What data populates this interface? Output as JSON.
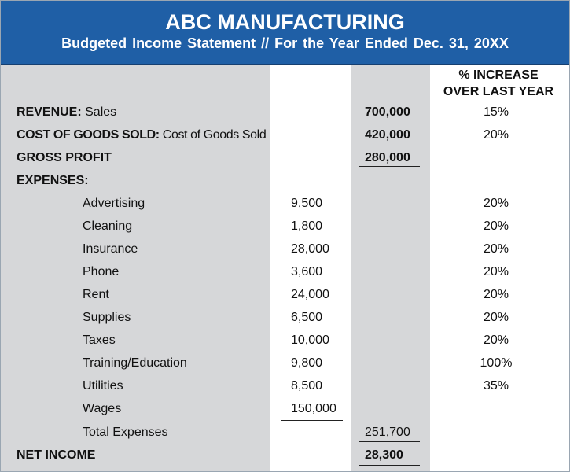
{
  "header": {
    "company": "ABC MANUFACTURING",
    "subtitle": "Budgeted  Income Statement   //   For the Year Ended Dec. 31, 20XX"
  },
  "column_headers": {
    "pct_line1": "% INCREASE",
    "pct_line2": "OVER LAST YEAR"
  },
  "revenue": {
    "label_bold": "REVENUE:",
    "label": " Sales",
    "total": "700,000",
    "pct": "15%"
  },
  "cogs": {
    "label_bold": "COST OF GOODS SOLD:",
    "label": " Cost of Goods Sold",
    "total": "420,000",
    "pct": "20%"
  },
  "gross_profit": {
    "label": "GROSS PROFIT",
    "total": "280,000"
  },
  "expenses": {
    "label": "EXPENSES:",
    "items": [
      {
        "label": "Advertising",
        "amount": "9,500",
        "pct": "20%"
      },
      {
        "label": "Cleaning",
        "amount": "1,800",
        "pct": "20%"
      },
      {
        "label": "Insurance",
        "amount": "28,000",
        "pct": "20%"
      },
      {
        "label": "Phone",
        "amount": "3,600",
        "pct": "20%"
      },
      {
        "label": "Rent",
        "amount": "24,000",
        "pct": "20%"
      },
      {
        "label": "Supplies",
        "amount": "6,500",
        "pct": "20%"
      },
      {
        "label": "Taxes",
        "amount": "10,000",
        "pct": "20%"
      },
      {
        "label": "Training/Education",
        "amount": "9,800",
        "pct": "100%"
      },
      {
        "label": "Utilities",
        "amount": "8,500",
        "pct": "35%"
      },
      {
        "label": "Wages",
        "amount": "150,000",
        "pct": ""
      }
    ],
    "total_label": "Total Expenses",
    "total": "251,700"
  },
  "net_income": {
    "label": "NET INCOME",
    "total": "28,300"
  },
  "colors": {
    "header_bg": "#1f5fa6",
    "column_shade": "#d6d7d9"
  }
}
